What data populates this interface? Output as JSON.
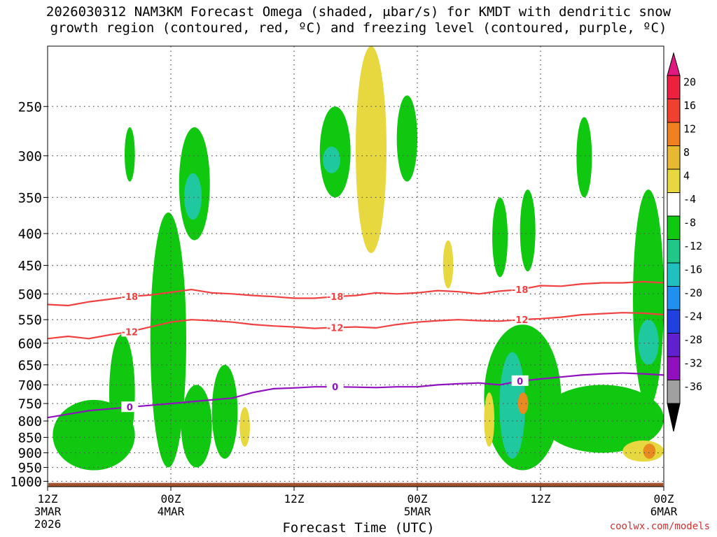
{
  "title_line1": "2026030312 NAM3KM Forecast Omega (shaded, μbar/s) for KMDT with dendritic snow",
  "title_line2": "growth region (contoured, red, ºC) and freezing level (contoured, purple, ºC)",
  "credit": "coolwx.com/models",
  "chart_data": {
    "type": "heatmap",
    "title": "2026030312 NAM3KM Forecast Omega (shaded, μbar/s) for KMDT with dendritic snow growth region (contoured, red, ºC) and freezing level (contoured, purple, ºC)",
    "xlabel": "Forecast Time (UTC)",
    "ylabel": "",
    "xlim_hours": [
      0,
      60
    ],
    "ylim_hpa": [
      1020,
      200
    ],
    "y_log_pressure": true,
    "grid": "dotted horizontal at pressure levels",
    "x_ticks": [
      {
        "hour": 0,
        "label": "12Z",
        "date": "3MAR",
        "year": "2026"
      },
      {
        "hour": 12,
        "label": "00Z",
        "date": "4MAR",
        "year": ""
      },
      {
        "hour": 24,
        "label": "12Z",
        "date": "",
        "year": ""
      },
      {
        "hour": 36,
        "label": "00Z",
        "date": "5MAR",
        "year": ""
      },
      {
        "hour": 48,
        "label": "12Z",
        "date": "",
        "year": ""
      },
      {
        "hour": 60,
        "label": "00Z",
        "date": "6MAR",
        "year": ""
      }
    ],
    "y_ticks": [
      250,
      300,
      350,
      400,
      450,
      500,
      550,
      600,
      650,
      700,
      750,
      800,
      850,
      900,
      950,
      1000
    ],
    "colorbar": {
      "labels": [
        "20",
        "16",
        "12",
        "8",
        "4",
        "-4",
        "-8",
        "-12",
        "-16",
        "-20",
        "-24",
        "-28",
        "-32",
        "-36"
      ],
      "colors": [
        "#ee2040",
        "#f04030",
        "#f08020",
        "#e8b830",
        "#e8d840",
        "#ffffff",
        "#10c810",
        "#20c888",
        "#20c0c0",
        "#2090f0",
        "#2040e0",
        "#6020d0",
        "#9010c0",
        "#a0a0a0"
      ]
    },
    "contours": [
      {
        "name": "-18",
        "color": "#f04040",
        "x_hours": [
          0,
          2,
          4,
          6,
          8,
          10,
          12,
          14,
          16,
          18,
          20,
          22,
          24,
          26,
          28,
          30,
          32,
          34,
          36,
          38,
          40,
          42,
          44,
          46,
          48,
          50,
          52,
          54,
          56,
          58,
          60
        ],
        "y_hpa": [
          520,
          522,
          515,
          510,
          505,
          502,
          497,
          492,
          498,
          500,
          503,
          505,
          508,
          508,
          505,
          503,
          498,
          500,
          498,
          494,
          496,
          500,
          495,
          492,
          485,
          486,
          482,
          480,
          480,
          478,
          480
        ]
      },
      {
        "name": "-12",
        "color": "#f04040",
        "x_hours": [
          0,
          2,
          4,
          6,
          8,
          10,
          12,
          14,
          16,
          18,
          20,
          22,
          24,
          26,
          28,
          30,
          32,
          34,
          36,
          38,
          40,
          42,
          44,
          46,
          48,
          50,
          52,
          54,
          56,
          58,
          60
        ],
        "y_hpa": [
          590,
          585,
          590,
          582,
          575,
          565,
          555,
          550,
          552,
          555,
          560,
          563,
          565,
          568,
          566,
          565,
          567,
          560,
          555,
          552,
          550,
          552,
          553,
          550,
          548,
          545,
          540,
          538,
          536,
          537,
          540
        ]
      },
      {
        "name": "0",
        "color": "#9010c0",
        "x_hours": [
          0,
          2,
          4,
          6,
          8,
          10,
          12,
          14,
          16,
          18,
          20,
          22,
          24,
          26,
          28,
          30,
          32,
          34,
          36,
          38,
          40,
          42,
          44,
          46,
          48,
          50,
          52,
          54,
          56,
          58,
          60
        ],
        "y_hpa": [
          790,
          780,
          770,
          765,
          760,
          755,
          750,
          745,
          740,
          735,
          720,
          710,
          708,
          705,
          705,
          706,
          707,
          705,
          705,
          700,
          697,
          695,
          700,
          690,
          685,
          680,
          675,
          672,
          670,
          672,
          675
        ]
      }
    ],
    "regions": [
      {
        "level": "-8",
        "x_hours": [
          0.5,
          8.5
        ],
        "p_hpa": [
          740,
          960
        ]
      },
      {
        "level": "-8",
        "x_hours": [
          6,
          8.5
        ],
        "p_hpa": [
          580,
          900
        ]
      },
      {
        "level": "-8",
        "x_hours": [
          7.5,
          8.5
        ],
        "p_hpa": [
          270,
          330
        ]
      },
      {
        "level": "-8",
        "x_hours": [
          10,
          13.5
        ],
        "p_hpa": [
          370,
          950
        ]
      },
      {
        "level": "-8",
        "x_hours": [
          12.8,
          15.8
        ],
        "p_hpa": [
          270,
          410
        ]
      },
      {
        "level": "-8",
        "x_hours": [
          13,
          16
        ],
        "p_hpa": [
          700,
          950
        ]
      },
      {
        "level": "-8",
        "x_hours": [
          16,
          18.5
        ],
        "p_hpa": [
          650,
          920
        ]
      },
      {
        "level": "-8",
        "x_hours": [
          26.5,
          29.5
        ],
        "p_hpa": [
          250,
          350
        ]
      },
      {
        "level": "-8",
        "x_hours": [
          34,
          36
        ],
        "p_hpa": [
          240,
          330
        ]
      },
      {
        "level": "-8",
        "x_hours": [
          42.5,
          50
        ],
        "p_hpa": [
          560,
          960
        ]
      },
      {
        "level": "-8",
        "x_hours": [
          43.3,
          44.8
        ],
        "p_hpa": [
          350,
          470
        ]
      },
      {
        "level": "-8",
        "x_hours": [
          46,
          47.5
        ],
        "p_hpa": [
          340,
          460
        ]
      },
      {
        "level": "-8",
        "x_hours": [
          51.5,
          53
        ],
        "p_hpa": [
          260,
          350
        ]
      },
      {
        "level": "-8",
        "x_hours": [
          48,
          60
        ],
        "p_hpa": [
          700,
          900
        ]
      },
      {
        "level": "-8",
        "x_hours": [
          57,
          60
        ],
        "p_hpa": [
          340,
          760
        ]
      },
      {
        "level": "-12",
        "x_hours": [
          44,
          46.5
        ],
        "p_hpa": [
          620,
          920
        ]
      },
      {
        "level": "-12",
        "x_hours": [
          13.3,
          15
        ],
        "p_hpa": [
          320,
          380
        ]
      },
      {
        "level": "-12",
        "x_hours": [
          26.8,
          28.5
        ],
        "p_hpa": [
          290,
          320
        ]
      },
      {
        "level": "-12",
        "x_hours": [
          57.5,
          59.5
        ],
        "p_hpa": [
          550,
          650
        ]
      },
      {
        "level": "4",
        "x_hours": [
          30,
          33
        ],
        "p_hpa": [
          200,
          430
        ]
      },
      {
        "level": "4",
        "x_hours": [
          18.7,
          19.7
        ],
        "p_hpa": [
          760,
          880
        ]
      },
      {
        "level": "4",
        "x_hours": [
          42.5,
          43.5
        ],
        "p_hpa": [
          720,
          880
        ]
      },
      {
        "level": "4",
        "x_hours": [
          56,
          60
        ],
        "p_hpa": [
          860,
          930
        ]
      },
      {
        "level": "4",
        "x_hours": [
          38.5,
          39.5
        ],
        "p_hpa": [
          410,
          490
        ]
      },
      {
        "level": "12",
        "x_hours": [
          45.8,
          46.8
        ],
        "p_hpa": [
          720,
          780
        ]
      },
      {
        "level": "12",
        "x_hours": [
          58,
          59.2
        ],
        "p_hpa": [
          870,
          920
        ]
      }
    ],
    "ground_level_hpa": 1020,
    "ground_color": "#a0522d"
  }
}
